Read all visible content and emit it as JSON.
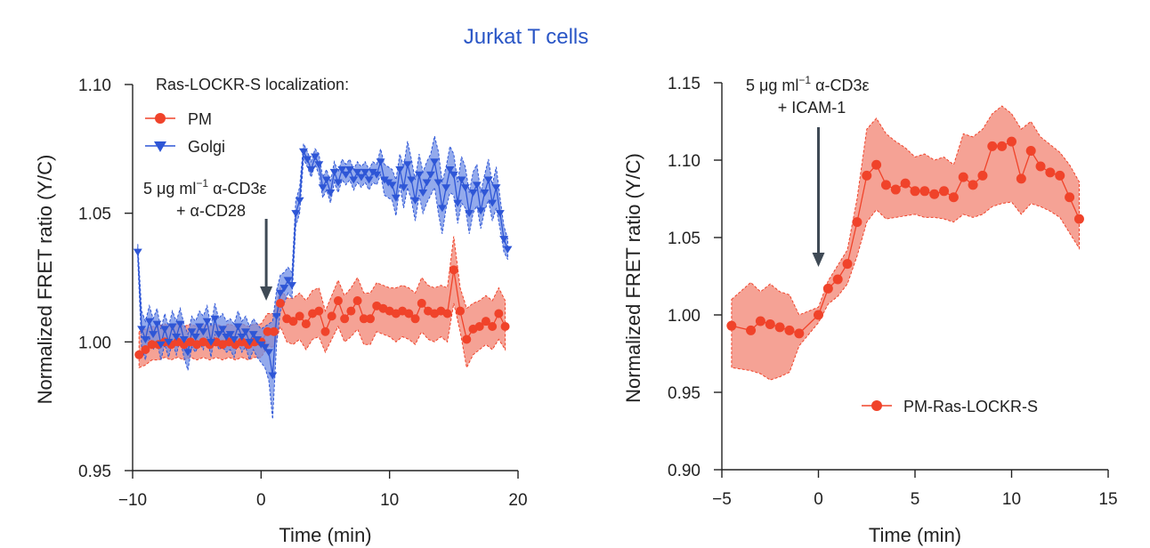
{
  "figure_title": "Jurkat T cells",
  "colors": {
    "pm": "#f0432a",
    "pm_band": "#f28b7a",
    "golgi": "#2e56d6",
    "golgi_band": "#6f8de6",
    "arrow": "#3f4a55",
    "title": "#2a56c6"
  },
  "chart_data": [
    {
      "type": "line",
      "xlabel": "Time (min)",
      "ylabel": "Normalized FRET ratio (Y/C)",
      "xlim": [
        -10,
        20
      ],
      "ylim": [
        0.95,
        1.1
      ],
      "xticks": [
        -10,
        0,
        10,
        20
      ],
      "xtick_labels": [
        "−10",
        "0",
        "10",
        "20"
      ],
      "yticks": [
        0.95,
        1.0,
        1.05,
        1.1
      ],
      "ytick_labels": [
        "0.95",
        "1.00",
        "1.05",
        "1.10"
      ],
      "legend_title": "Ras-LOCKR-S localization:",
      "annotation": {
        "line1": "5 μg ml",
        "sup": "−1",
        "line1b": " α-CD3ε",
        "line2": "+ α-CD28",
        "x": 0.4
      },
      "series": [
        {
          "name": "PM",
          "marker": "circle",
          "x": [
            -9.5,
            -9.0,
            -8.5,
            -8.0,
            -7.5,
            -7.0,
            -6.5,
            -6.0,
            -5.5,
            -5.0,
            -4.5,
            -4.0,
            -3.5,
            -3.0,
            -2.5,
            -2.0,
            -1.5,
            -1.0,
            -0.5,
            0.0,
            0.5,
            1.0,
            1.5,
            2.0,
            2.5,
            3.0,
            3.5,
            4.0,
            4.5,
            5.0,
            5.5,
            6.0,
            6.5,
            7.0,
            7.5,
            8.0,
            8.5,
            9.0,
            9.5,
            10.0,
            10.5,
            11.0,
            11.5,
            12.0,
            12.5,
            13.0,
            13.5,
            14.0,
            14.5,
            15.0,
            15.5,
            16.0,
            16.5,
            17.0,
            17.5,
            18.0,
            18.5,
            19.0
          ],
          "y": [
            0.995,
            0.997,
            0.999,
            0.999,
            1.0,
            0.999,
            1.0,
            0.999,
            1.0,
            0.999,
            1.0,
            0.999,
            1.0,
            0.999,
            1.0,
            0.999,
            1.0,
            0.999,
            1.0,
            1.0,
            1.004,
            1.004,
            1.015,
            1.009,
            1.008,
            1.01,
            1.007,
            1.011,
            1.012,
            1.004,
            1.01,
            1.016,
            1.009,
            1.012,
            1.016,
            1.009,
            1.009,
            1.014,
            1.013,
            1.012,
            1.011,
            1.012,
            1.011,
            1.009,
            1.015,
            1.012,
            1.011,
            1.012,
            1.011,
            1.028,
            1.012,
            1.001,
            1.005,
            1.006,
            1.008,
            1.006,
            1.011,
            1.006
          ],
          "lower": [
            0.99,
            0.991,
            0.993,
            0.993,
            0.994,
            0.993,
            0.994,
            0.993,
            0.994,
            0.993,
            0.994,
            0.993,
            0.994,
            0.993,
            0.994,
            0.993,
            0.994,
            0.993,
            0.994,
            0.994,
            0.998,
            0.998,
            1.006,
            1.0,
            0.999,
            1.001,
            0.997,
            1.001,
            1.002,
            0.996,
            1.001,
            1.006,
            1.0,
            1.002,
            1.005,
            0.999,
            0.999,
            1.004,
            1.003,
            1.002,
            1.0,
            1.002,
            1.001,
            0.999,
            1.004,
            1.001,
            1.0,
            1.002,
            1.0,
            1.015,
            1.004,
            0.99,
            0.995,
            0.997,
            0.999,
            0.997,
            1.001,
            0.997
          ],
          "upper": [
            1.004,
            1.005,
            1.006,
            1.006,
            1.007,
            1.006,
            1.007,
            1.006,
            1.007,
            1.006,
            1.007,
            1.006,
            1.007,
            1.006,
            1.007,
            1.006,
            1.007,
            1.006,
            1.007,
            1.007,
            1.011,
            1.011,
            1.021,
            1.017,
            1.017,
            1.019,
            1.016,
            1.02,
            1.021,
            1.012,
            1.018,
            1.024,
            1.018,
            1.021,
            1.025,
            1.019,
            1.019,
            1.023,
            1.022,
            1.021,
            1.021,
            1.022,
            1.021,
            1.019,
            1.025,
            1.022,
            1.021,
            1.022,
            1.021,
            1.041,
            1.021,
            1.013,
            1.015,
            1.016,
            1.018,
            1.016,
            1.021,
            1.016
          ]
        },
        {
          "name": "Golgi",
          "marker": "triangle-down",
          "x": [
            -9.6,
            -9.3,
            -9.0,
            -8.7,
            -8.4,
            -8.1,
            -7.8,
            -7.5,
            -7.2,
            -6.9,
            -6.6,
            -6.3,
            -6.0,
            -5.7,
            -5.4,
            -5.1,
            -4.8,
            -4.5,
            -4.2,
            -3.9,
            -3.6,
            -3.3,
            -3.0,
            -2.7,
            -2.4,
            -2.1,
            -1.8,
            -1.5,
            -1.2,
            -0.9,
            -0.6,
            -0.3,
            0.0,
            0.3,
            0.6,
            0.9,
            1.2,
            1.5,
            1.8,
            2.1,
            2.4,
            2.7,
            3.0,
            3.3,
            3.6,
            3.9,
            4.2,
            4.5,
            4.8,
            5.1,
            5.4,
            5.7,
            6.0,
            6.3,
            6.6,
            6.9,
            7.2,
            7.5,
            7.8,
            8.1,
            8.4,
            8.7,
            9.0,
            9.3,
            9.6,
            9.9,
            10.2,
            10.5,
            10.8,
            11.1,
            11.4,
            11.7,
            12.0,
            12.3,
            12.6,
            12.9,
            13.2,
            13.5,
            13.8,
            14.1,
            14.4,
            14.7,
            15.0,
            15.3,
            15.6,
            15.9,
            16.2,
            16.5,
            16.8,
            17.1,
            17.4,
            17.7,
            18.0,
            18.3,
            18.6,
            18.9,
            19.2
          ],
          "y": [
            1.035,
            1.005,
            1.001,
            1.008,
            1.003,
            1.007,
            0.999,
            1.005,
            1.0,
            1.006,
            1.002,
            1.007,
            1.001,
            0.996,
            1.004,
            1.002,
            1.006,
            1.004,
            1.008,
            1.0,
            1.009,
            1.003,
            1.005,
            1.002,
            1.003,
            1.001,
            1.006,
            1.002,
            1.004,
            1.0,
            1.003,
            1.001,
            0.999,
            0.998,
            0.996,
            0.987,
            1.01,
            1.019,
            1.021,
            1.024,
            1.022,
            1.05,
            1.055,
            1.074,
            1.071,
            1.067,
            1.072,
            1.069,
            1.06,
            1.063,
            1.058,
            1.066,
            1.062,
            1.067,
            1.065,
            1.067,
            1.063,
            1.066,
            1.064,
            1.066,
            1.063,
            1.066,
            1.065,
            1.07,
            1.063,
            1.062,
            1.061,
            1.056,
            1.067,
            1.06,
            1.069,
            1.063,
            1.055,
            1.065,
            1.058,
            1.062,
            1.065,
            1.07,
            1.062,
            1.052,
            1.06,
            1.067,
            1.065,
            1.054,
            1.063,
            1.06,
            1.05,
            1.058,
            1.061,
            1.051,
            1.058,
            1.063,
            1.054,
            1.06,
            1.05,
            1.04,
            1.036
          ],
          "lower": [
            1.032,
            0.998,
            0.993,
            1.002,
            0.997,
            1.0,
            0.993,
            0.999,
            0.994,
            1.0,
            0.995,
            1.001,
            0.994,
            0.989,
            0.998,
            0.996,
            1.0,
            0.997,
            1.002,
            0.994,
            1.003,
            0.997,
            0.998,
            0.996,
            0.997,
            0.994,
            1.0,
            0.996,
            0.998,
            0.993,
            0.997,
            0.994,
            0.992,
            0.99,
            0.985,
            0.97,
            0.999,
            1.012,
            1.015,
            1.019,
            1.017,
            1.045,
            1.05,
            1.071,
            1.068,
            1.064,
            1.069,
            1.065,
            1.056,
            1.059,
            1.054,
            1.062,
            1.058,
            1.063,
            1.061,
            1.063,
            1.059,
            1.062,
            1.06,
            1.062,
            1.059,
            1.062,
            1.061,
            1.065,
            1.057,
            1.056,
            1.055,
            1.049,
            1.061,
            1.052,
            1.06,
            1.055,
            1.047,
            1.057,
            1.05,
            1.054,
            1.057,
            1.06,
            1.05,
            1.042,
            1.052,
            1.058,
            1.057,
            1.046,
            1.054,
            1.052,
            1.042,
            1.05,
            1.053,
            1.044,
            1.051,
            1.055,
            1.047,
            1.052,
            1.044,
            1.035,
            1.032
          ],
          "upper": [
            1.038,
            1.012,
            1.008,
            1.014,
            1.009,
            1.013,
            1.005,
            1.011,
            1.006,
            1.012,
            1.008,
            1.013,
            1.007,
            1.003,
            1.01,
            1.008,
            1.012,
            1.01,
            1.014,
            1.006,
            1.015,
            1.009,
            1.011,
            1.008,
            1.009,
            1.007,
            1.012,
            1.008,
            1.01,
            1.006,
            1.009,
            1.007,
            1.005,
            1.006,
            1.007,
            1.008,
            1.02,
            1.026,
            1.027,
            1.029,
            1.027,
            1.055,
            1.06,
            1.077,
            1.074,
            1.07,
            1.075,
            1.073,
            1.064,
            1.067,
            1.062,
            1.07,
            1.066,
            1.071,
            1.069,
            1.071,
            1.067,
            1.07,
            1.068,
            1.07,
            1.067,
            1.07,
            1.069,
            1.075,
            1.069,
            1.068,
            1.067,
            1.063,
            1.073,
            1.068,
            1.078,
            1.071,
            1.063,
            1.073,
            1.066,
            1.07,
            1.073,
            1.08,
            1.074,
            1.062,
            1.068,
            1.076,
            1.073,
            1.062,
            1.072,
            1.068,
            1.058,
            1.066,
            1.069,
            1.058,
            1.065,
            1.071,
            1.061,
            1.068,
            1.056,
            1.045,
            1.04
          ]
        }
      ]
    },
    {
      "type": "line",
      "xlabel": "Time (min)",
      "ylabel": "Normalized FRET ratio (Y/C)",
      "xlim": [
        -5,
        15
      ],
      "ylim": [
        0.9,
        1.15
      ],
      "xticks": [
        -5,
        0,
        5,
        10,
        15
      ],
      "xtick_labels": [
        "−5",
        "0",
        "5",
        "10",
        "15"
      ],
      "yticks": [
        0.9,
        0.95,
        1.0,
        1.05,
        1.1,
        1.15
      ],
      "ytick_labels": [
        "0.90",
        "0.95",
        "1.00",
        "1.05",
        "1.10",
        "1.15"
      ],
      "annotation": {
        "line1": "5 μg ml",
        "sup": "−1",
        "line1b": " α-CD3ε",
        "line2": "+ ICAM-1",
        "x": 0.0
      },
      "series": [
        {
          "name": "PM-Ras-LOCKR-S",
          "marker": "circle",
          "x": [
            -4.5,
            -3.5,
            -3.0,
            -2.5,
            -2.0,
            -1.5,
            -1.0,
            0.0,
            0.5,
            1.0,
            1.5,
            2.0,
            2.5,
            3.0,
            3.5,
            4.0,
            4.5,
            5.0,
            5.5,
            6.0,
            6.5,
            7.0,
            7.5,
            8.0,
            8.5,
            9.0,
            9.5,
            10.0,
            10.5,
            11.0,
            11.5,
            12.0,
            12.5,
            13.0,
            13.5
          ],
          "y": [
            0.993,
            0.99,
            0.996,
            0.994,
            0.992,
            0.99,
            0.988,
            1.0,
            1.017,
            1.023,
            1.033,
            1.06,
            1.09,
            1.097,
            1.084,
            1.081,
            1.085,
            1.08,
            1.08,
            1.078,
            1.08,
            1.076,
            1.089,
            1.084,
            1.09,
            1.109,
            1.109,
            1.112,
            1.088,
            1.106,
            1.096,
            1.092,
            1.09,
            1.076,
            1.062
          ],
          "lower": [
            0.966,
            0.964,
            0.962,
            0.958,
            0.96,
            0.963,
            0.98,
            0.995,
            1.007,
            1.012,
            1.02,
            1.038,
            1.06,
            1.068,
            1.062,
            1.063,
            1.064,
            1.065,
            1.063,
            1.063,
            1.062,
            1.06,
            1.065,
            1.063,
            1.065,
            1.07,
            1.072,
            1.073,
            1.065,
            1.072,
            1.07,
            1.067,
            1.063,
            1.053,
            1.043
          ],
          "upper": [
            1.01,
            1.021,
            1.015,
            1.02,
            1.015,
            1.013,
            1.0,
            1.005,
            1.022,
            1.032,
            1.042,
            1.075,
            1.12,
            1.127,
            1.117,
            1.112,
            1.108,
            1.102,
            1.104,
            1.1,
            1.102,
            1.097,
            1.117,
            1.115,
            1.12,
            1.13,
            1.135,
            1.13,
            1.12,
            1.125,
            1.115,
            1.11,
            1.105,
            1.097,
            1.086
          ]
        }
      ]
    }
  ]
}
